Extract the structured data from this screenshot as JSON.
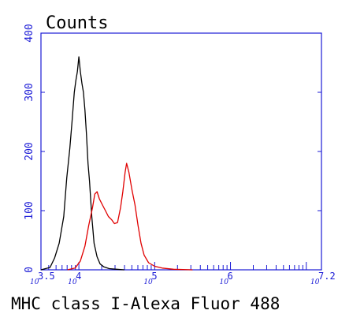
{
  "chart_data": {
    "type": "line",
    "title": "Counts",
    "xlabel": "MHC class I-Alexa Fluor 488",
    "ylabel": "",
    "x_scale": "log10",
    "xlim": [
      3.5,
      7.2
    ],
    "ylim": [
      0,
      400
    ],
    "y_ticks": [
      "0",
      "100",
      "200",
      "300",
      "400"
    ],
    "x_tick_labels": [
      {
        "base": "10",
        "exp": "3.5"
      },
      {
        "base": "10",
        "exp": "4"
      },
      {
        "base": "10",
        "exp": "5"
      },
      {
        "base": "10",
        "exp": "6"
      },
      {
        "base": "10",
        "exp": "7.2"
      }
    ],
    "axis_color": "#1a1ad6",
    "series": [
      {
        "color": "#000000",
        "x": [
          3.5,
          3.62,
          3.68,
          3.74,
          3.8,
          3.84,
          3.88,
          3.91,
          3.94,
          3.96,
          3.98,
          4.0,
          4.02,
          4.04,
          4.06,
          4.08,
          4.1,
          4.12,
          4.14,
          4.17,
          4.2,
          4.24,
          4.28,
          4.33,
          4.4,
          4.5,
          4.6
        ],
        "y": [
          0,
          4,
          20,
          45,
          90,
          155,
          205,
          250,
          300,
          320,
          335,
          360,
          335,
          315,
          300,
          270,
          230,
          180,
          150,
          90,
          45,
          22,
          10,
          5,
          2,
          1,
          0
        ]
      },
      {
        "color": "#e00000",
        "x": [
          3.85,
          3.95,
          4.02,
          4.08,
          4.13,
          4.18,
          4.21,
          4.24,
          4.27,
          4.31,
          4.35,
          4.39,
          4.43,
          4.47,
          4.51,
          4.55,
          4.58,
          4.61,
          4.63,
          4.66,
          4.7,
          4.74,
          4.78,
          4.82,
          4.86,
          4.92,
          5.0,
          5.1,
          5.25,
          5.5
        ],
        "y": [
          0,
          3,
          15,
          40,
          75,
          105,
          128,
          132,
          120,
          110,
          100,
          90,
          85,
          78,
          80,
          105,
          132,
          165,
          180,
          165,
          135,
          110,
          75,
          45,
          25,
          12,
          6,
          3,
          1,
          0
        ]
      }
    ]
  }
}
